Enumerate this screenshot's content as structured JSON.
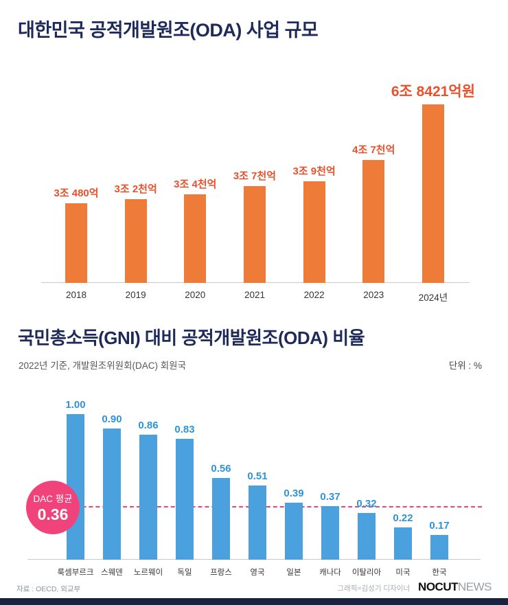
{
  "header1": {
    "pre": "대한민국 ",
    "strong": "공적개발원조(ODA)",
    "post": " 사업 규모"
  },
  "header2": {
    "pre": "국민총소득(GNI) 대비 ",
    "strong": "공적개발원조(ODA) 비율",
    "post": "",
    "subtitle": "2022년 기준, 개발원조위원회(DAC) 회원국",
    "unit": "단위 : %"
  },
  "footer": {
    "source": "자료 : OECD, 외교부",
    "credit": "그래픽=김성기 디자이너",
    "logo_primary": "NOCUT",
    "logo_secondary": "NEWS"
  },
  "colors": {
    "navy_title": "#1e2a5a",
    "orange_bar": "#ee7c38",
    "orange_label": "#e8512b",
    "blue_bar": "#4ba1de",
    "blue_label": "#2e93da",
    "pink_accent": "#f0437c",
    "bottom_bar_navy": "#1a2240"
  },
  "chart_data": [
    {
      "type": "bar",
      "title": "대한민국 공적개발원조(ODA) 사업 규모",
      "unit": "조원 (KRW)",
      "categories": [
        "2018",
        "2019",
        "2020",
        "2021",
        "2022",
        "2023",
        "2024년"
      ],
      "values": [
        3.048,
        3.2,
        3.4,
        3.7,
        3.9,
        4.7,
        6.8421
      ],
      "value_labels": [
        "3조 480억",
        "3조 2천억",
        "3조 4천억",
        "3조 7천억",
        "3조 9천억",
        "4조 7천억",
        "6조 8421억원"
      ],
      "bar_color": "#ee7c38",
      "label_color": "#e8512b",
      "ylim": [
        0,
        7
      ],
      "grid": false,
      "highlight_last": true
    },
    {
      "type": "bar",
      "title": "국민총소득(GNI) 대비 공적개발원조(ODA) 비율",
      "subtitle": "2022년 기준, 개발원조위원회(DAC) 회원국",
      "unit": "%",
      "categories": [
        "룩셈부르크",
        "스웨덴",
        "노르웨이",
        "독일",
        "프랑스",
        "영국",
        "일본",
        "캐나다",
        "이탈리아",
        "미국",
        "한국"
      ],
      "values": [
        1.0,
        0.9,
        0.86,
        0.83,
        0.56,
        0.51,
        0.39,
        0.37,
        0.32,
        0.22,
        0.17
      ],
      "value_labels": [
        "1.00",
        "0.90",
        "0.86",
        "0.83",
        "0.56",
        "0.51",
        "0.39",
        "0.37",
        "0.32",
        "0.22",
        "0.17"
      ],
      "average": {
        "label": "DAC 평균",
        "value": "0.36",
        "numeric": 0.36
      },
      "bar_color": "#4ba1de",
      "label_color": "#2e93da",
      "ylim": [
        0,
        1.1
      ],
      "grid": false,
      "highlight_last": false
    }
  ]
}
